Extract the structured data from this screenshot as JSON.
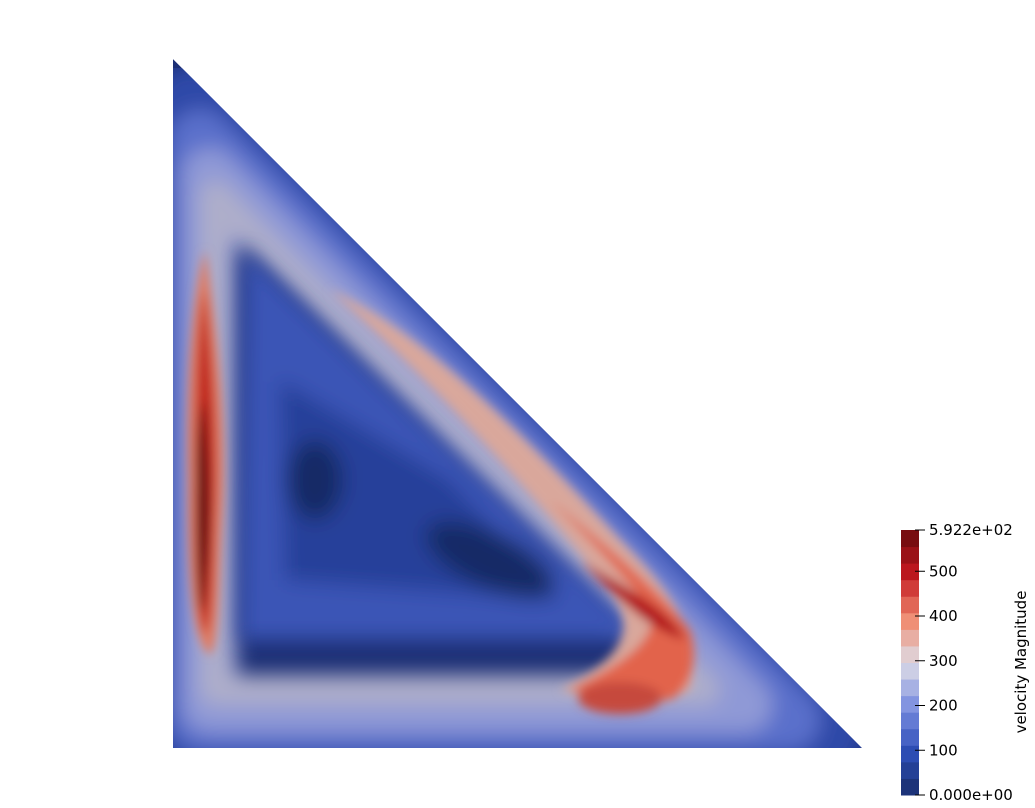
{
  "chart_data": {
    "type": "heatmap",
    "title": "",
    "field_label": "velocity Magnitude",
    "range": [
      0,
      592.2
    ],
    "range_labels": {
      "max": "5.922e+02",
      "min": "0.000e+00"
    },
    "ticks": [
      {
        "value": 100,
        "label": "100"
      },
      {
        "value": 200,
        "label": "200"
      },
      {
        "value": 300,
        "label": "300"
      },
      {
        "value": 400,
        "label": "400"
      },
      {
        "value": 500,
        "label": "500"
      }
    ],
    "num_levels": 16,
    "colormap": [
      "#182c6b",
      "#2e4fb8",
      "#7d8fe0",
      "#dedde6",
      "#f08a6f",
      "#c1181f",
      "#670a0c"
    ],
    "domain_shape": "right-triangle"
  }
}
